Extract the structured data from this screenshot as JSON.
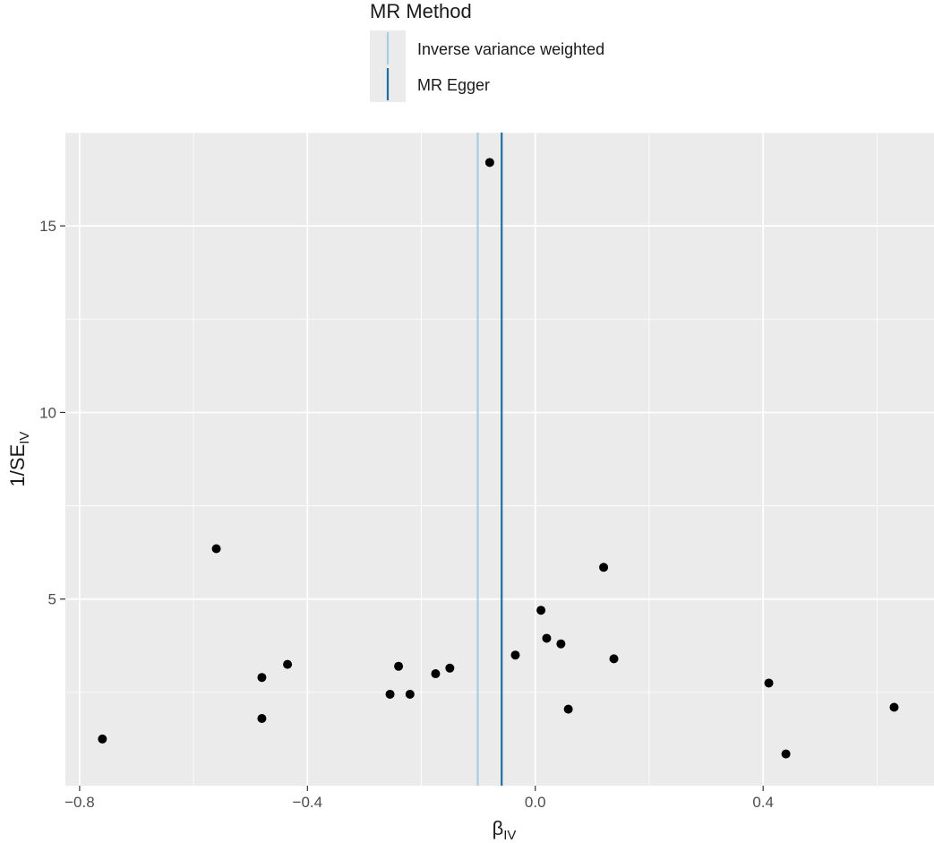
{
  "chart_data": {
    "type": "scatter",
    "title": "",
    "xlabel": "β",
    "xlabel_sub": "IV",
    "ylabel": "1/SE",
    "ylabel_sub": "IV",
    "xlim": [
      -0.825,
      0.7
    ],
    "ylim": [
      0,
      17.5
    ],
    "x_ticks": [
      -0.8,
      -0.4,
      0.0,
      0.4
    ],
    "x_tick_labels": [
      "−0.8",
      "−0.4",
      "0.0",
      "0.4"
    ],
    "y_ticks": [
      5,
      10,
      15
    ],
    "y_tick_labels": [
      "5",
      "10",
      "15"
    ],
    "grid": true,
    "legend": {
      "title": "MR Method",
      "placement": "top",
      "entries": [
        {
          "label": "Inverse variance weighted",
          "color": "#a6cee3"
        },
        {
          "label": "MR Egger",
          "color": "#1f6fa3"
        }
      ]
    },
    "lines": [
      {
        "method": "Inverse variance weighted",
        "x": -0.101,
        "color": "#a6cee3"
      },
      {
        "method": "MR Egger",
        "x": -0.059,
        "color": "#1f6fa3"
      }
    ],
    "points": [
      {
        "x": -0.08,
        "y": 16.7
      },
      {
        "x": -0.56,
        "y": 6.35
      },
      {
        "x": 0.12,
        "y": 5.85
      },
      {
        "x": 0.01,
        "y": 4.7
      },
      {
        "x": 0.02,
        "y": 3.95
      },
      {
        "x": 0.045,
        "y": 3.8
      },
      {
        "x": -0.035,
        "y": 3.5
      },
      {
        "x": 0.138,
        "y": 3.4
      },
      {
        "x": -0.435,
        "y": 3.25
      },
      {
        "x": -0.24,
        "y": 3.2
      },
      {
        "x": -0.15,
        "y": 3.15
      },
      {
        "x": -0.175,
        "y": 3.0
      },
      {
        "x": -0.48,
        "y": 2.9
      },
      {
        "x": 0.41,
        "y": 2.75
      },
      {
        "x": -0.255,
        "y": 2.45
      },
      {
        "x": -0.22,
        "y": 2.45
      },
      {
        "x": 0.63,
        "y": 2.1
      },
      {
        "x": 0.058,
        "y": 2.05
      },
      {
        "x": -0.48,
        "y": 1.8
      },
      {
        "x": -0.76,
        "y": 1.25
      },
      {
        "x": 0.44,
        "y": 0.85
      }
    ],
    "colors": {
      "panel": "#ebebeb",
      "grid_major": "#ffffff",
      "point": "#000000",
      "tick": "#333333"
    }
  }
}
